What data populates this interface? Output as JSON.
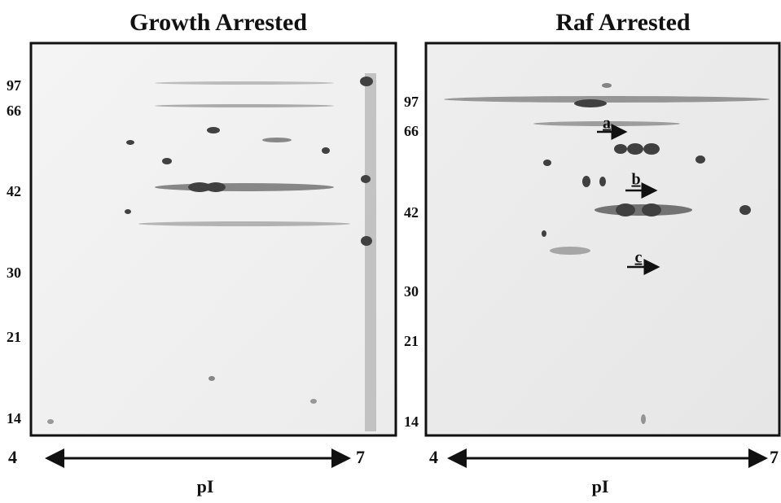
{
  "panels": [
    {
      "title": "Growth Arrested",
      "mw_labels": [
        "97",
        "66",
        "42",
        "30",
        "21",
        "14"
      ],
      "pi_start": "4",
      "pi_end": "7",
      "axis_label": "pI"
    },
    {
      "title": "Raf Arrested",
      "mw_labels": [
        "97",
        "66",
        "42",
        "30",
        "21",
        "14"
      ],
      "pi_start": "4",
      "pi_end": "7",
      "axis_label": "pI",
      "spot_labels": [
        "a",
        "b",
        "c"
      ]
    }
  ]
}
